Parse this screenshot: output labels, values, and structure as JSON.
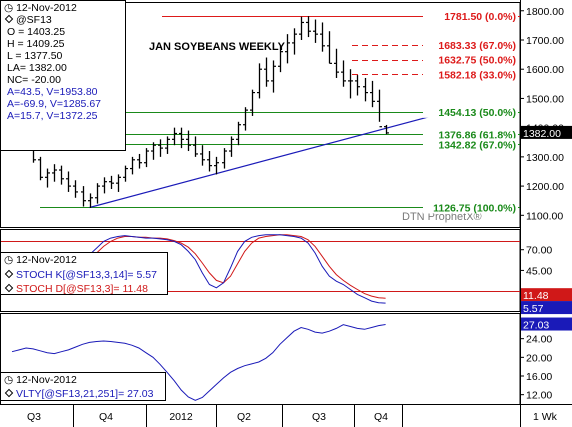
{
  "title": "JAN SOYBEANS WEEKLY",
  "watermark": "DTN ProphetX®",
  "colors": {
    "price": "#000000",
    "resistance": "#dd1a1a",
    "support": "#1a8a1a",
    "trendline": "#1a1ab8",
    "stoch_k": "#1a1ab8",
    "stoch_d": "#d01818",
    "volatility": "#1a1ab8",
    "last_box": "#000000",
    "k_box": "#1a1ab8",
    "d_box": "#d01818",
    "vlty_box": "#1a1ab8"
  },
  "info_panel": {
    "date": "12-Nov-2012",
    "symbol": "@SF13",
    "open": "O = 1403.25",
    "high": "H = 1409.25",
    "low": "L = 1377.50",
    "last": "LA= 1382.00",
    "net_change": "NC= -20.00",
    "cursor_a": "A=43.5, V=1953.80",
    "cursor_b": "A=-69.9, V=1285.67",
    "cursor_c": "A=15.7, V=1372.25"
  },
  "stoch_panel": {
    "date": "12-Nov-2012",
    "k_label": "STOCH K[@SF13,3,14]= 5.57",
    "d_label": "STOCH D[@SF13,3]= 11.48"
  },
  "vlty_panel": {
    "date": "12-Nov-2012",
    "label": "VLTY[@SF13,21,251]= 27.03"
  },
  "chart_data": [
    {
      "type": "ohlc",
      "name": "price",
      "yticks": [
        1100.0,
        1200.0,
        1300.0,
        1400.0,
        1500.0,
        1600.0,
        1700.0,
        1800.0
      ],
      "ylim": [
        1060,
        1830
      ],
      "last_value": "1382.00",
      "x_labels": [
        "Q3",
        "Q4",
        "2012",
        "Q2",
        "Q3",
        "Q4"
      ],
      "x_unit": "1 Wk",
      "bars": [
        [
          1370,
          1395,
          1360
        ],
        [
          1385,
          1420,
          1375
        ],
        [
          1400,
          1410,
          1330
        ],
        [
          1340,
          1360,
          1280
        ],
        [
          1290,
          1300,
          1220
        ],
        [
          1230,
          1260,
          1195
        ],
        [
          1245,
          1275,
          1215
        ],
        [
          1255,
          1270,
          1205
        ],
        [
          1225,
          1250,
          1180
        ],
        [
          1200,
          1220,
          1160
        ],
        [
          1180,
          1200,
          1130
        ],
        [
          1150,
          1175,
          1125
        ],
        [
          1160,
          1210,
          1140
        ],
        [
          1200,
          1230,
          1175
        ],
        [
          1215,
          1235,
          1190
        ],
        [
          1210,
          1240,
          1180
        ],
        [
          1230,
          1270,
          1215
        ],
        [
          1260,
          1300,
          1240
        ],
        [
          1290,
          1310,
          1260
        ],
        [
          1280,
          1330,
          1265
        ],
        [
          1320,
          1350,
          1290
        ],
        [
          1340,
          1360,
          1300
        ],
        [
          1330,
          1370,
          1310
        ],
        [
          1360,
          1400,
          1340
        ],
        [
          1380,
          1400,
          1330
        ],
        [
          1360,
          1390,
          1320
        ],
        [
          1340,
          1370,
          1300
        ],
        [
          1310,
          1340,
          1270
        ],
        [
          1290,
          1320,
          1250
        ],
        [
          1270,
          1300,
          1240
        ],
        [
          1280,
          1330,
          1260
        ],
        [
          1320,
          1370,
          1300
        ],
        [
          1360,
          1420,
          1340
        ],
        [
          1410,
          1470,
          1390
        ],
        [
          1460,
          1530,
          1440
        ],
        [
          1520,
          1620,
          1500
        ],
        [
          1600,
          1640,
          1540
        ],
        [
          1560,
          1630,
          1520
        ],
        [
          1610,
          1680,
          1590
        ],
        [
          1660,
          1720,
          1620
        ],
        [
          1690,
          1740,
          1650
        ],
        [
          1720,
          1780,
          1700
        ],
        [
          1760,
          1781.5,
          1710
        ],
        [
          1730,
          1770,
          1690
        ],
        [
          1720,
          1760,
          1660
        ],
        [
          1680,
          1730,
          1620
        ],
        [
          1620,
          1670,
          1570
        ],
        [
          1590,
          1630,
          1540
        ],
        [
          1560,
          1600,
          1500
        ],
        [
          1560,
          1580,
          1510
        ],
        [
          1540,
          1570,
          1490
        ],
        [
          1520,
          1560,
          1470
        ],
        [
          1490,
          1530,
          1420
        ],
        [
          1403.25,
          1409.25,
          1377.5
        ]
      ],
      "levels": [
        {
          "label": "1781.50 (0.0%)",
          "value": 1781.5,
          "kind": "resistance",
          "style": "solid"
        },
        {
          "label": "1683.33 (67.0%)",
          "value": 1683.33,
          "kind": "resistance",
          "style": "dashed"
        },
        {
          "label": "1632.75 (50.0%)",
          "value": 1632.75,
          "kind": "resistance",
          "style": "dashed"
        },
        {
          "label": "1582.18 (33.0%)",
          "value": 1582.18,
          "kind": "resistance",
          "style": "dashed"
        },
        {
          "label": "1454.13 (50.0%)",
          "value": 1454.13,
          "kind": "support",
          "style": "solid"
        },
        {
          "label": "1376.86 (61.8%)",
          "value": 1376.86,
          "kind": "support",
          "style": "solid"
        },
        {
          "label": "1342.82 (67.0%)",
          "value": 1342.82,
          "kind": "support",
          "style": "solid"
        },
        {
          "label": "1126.75 (100.0%)",
          "value": 1126.75,
          "kind": "support",
          "style": "solid"
        }
      ],
      "trendline": {
        "start_bar": 11,
        "start_value": 1126.75,
        "end_bar": 63,
        "end_value": 1462
      }
    },
    {
      "type": "line",
      "name": "stochastics",
      "yticks": [
        70.0,
        45.0,
        15.0
      ],
      "ylim": [
        -4,
        95
      ],
      "reference_lines": [
        {
          "value": 80,
          "color": "#d01818"
        },
        {
          "value": 20,
          "color": "#d01818"
        }
      ],
      "last_k": "5.57",
      "last_d": "11.48",
      "series": [
        {
          "name": "STOCH K",
          "values": [
            48,
            58,
            62,
            60,
            52,
            44,
            40,
            42,
            48,
            52,
            58,
            64,
            72,
            80,
            84,
            86,
            87,
            86,
            85,
            84,
            84,
            83,
            82,
            80,
            76,
            68,
            58,
            42,
            28,
            24,
            30,
            48,
            68,
            80,
            85,
            87,
            88,
            88,
            88,
            87,
            86,
            84,
            78,
            66,
            50,
            38,
            32,
            28,
            22,
            16,
            12,
            8,
            6,
            5.57
          ]
        },
        {
          "name": "STOCH D",
          "values": [
            44,
            52,
            58,
            60,
            56,
            50,
            45,
            42,
            44,
            48,
            53,
            59,
            66,
            74,
            80,
            84,
            86,
            86,
            85,
            85,
            84,
            84,
            83,
            81,
            78,
            73,
            65,
            54,
            42,
            33,
            30,
            38,
            53,
            68,
            78,
            84,
            86,
            87,
            88,
            88,
            87,
            86,
            82,
            74,
            62,
            50,
            40,
            33,
            27,
            22,
            17,
            14,
            12,
            11.48
          ]
        }
      ]
    },
    {
      "type": "line",
      "name": "volatility",
      "yticks": [
        24.0,
        20.0,
        16.0,
        12.0
      ],
      "ylim": [
        10,
        29.5
      ],
      "last_value": "27.03",
      "series": [
        {
          "name": "VLTY",
          "values": [
            21.2,
            21.6,
            22.0,
            21.8,
            21.4,
            21.0,
            20.8,
            21.2,
            21.6,
            22.2,
            22.8,
            23.2,
            23.4,
            23.5,
            23.4,
            23.2,
            23.0,
            22.6,
            22.0,
            21.0,
            20.0,
            18.5,
            16.8,
            15.0,
            13.0,
            11.5,
            10.8,
            11.4,
            12.8,
            14.2,
            15.6,
            16.8,
            17.6,
            18.2,
            18.6,
            19.0,
            19.8,
            21.0,
            22.8,
            24.2,
            25.6,
            26.4,
            26.0,
            25.4,
            25.2,
            25.6,
            26.2,
            27.0,
            26.6,
            26.2,
            26.0,
            26.4,
            26.8,
            27.03
          ]
        }
      ]
    }
  ]
}
